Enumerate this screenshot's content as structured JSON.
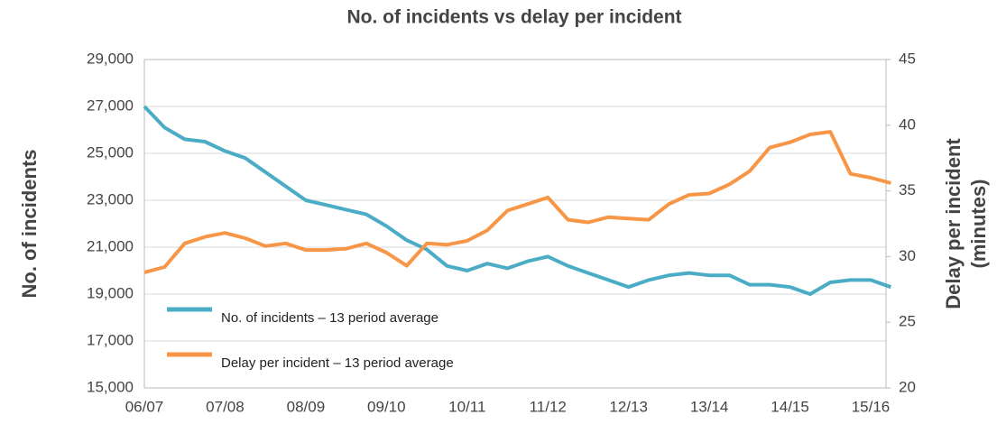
{
  "chart_data": {
    "type": "line",
    "title": "No. of incidents vs delay per incident",
    "y_label": "No. of incidents",
    "y2_label": [
      "Delay per incident",
      "(minutes)"
    ],
    "categories": [
      "06/07",
      null,
      null,
      null,
      "07/08",
      null,
      null,
      null,
      "08/09",
      null,
      null,
      null,
      "09/10",
      null,
      null,
      null,
      "10/11",
      null,
      null,
      null,
      "11/12",
      null,
      null,
      null,
      "12/13",
      null,
      null,
      null,
      "13/14",
      null,
      null,
      null,
      "14/15",
      null,
      null,
      null,
      "15/16",
      null
    ],
    "series": [
      {
        "name": "No. of incidents – 13 period average",
        "color": "#4bacc6",
        "values": [
          27000,
          26100,
          25600,
          25500,
          25100,
          24800,
          24200,
          23600,
          23000,
          22800,
          22600,
          22400,
          21900,
          21300,
          20900,
          20200,
          20000,
          20300,
          20100,
          20400,
          20600,
          20200,
          19900,
          19600,
          19300,
          19600,
          19800,
          19900,
          19800,
          19800,
          19400,
          19400,
          19300,
          19000,
          19500,
          19600,
          19600,
          19300
        ]
      },
      {
        "name": "Delay per incident – 13 period average",
        "color": "#f79646",
        "axis": "y2",
        "values": [
          28.8,
          29.2,
          31,
          31.5,
          31.8,
          31.4,
          30.8,
          31,
          30.5,
          30.5,
          30.6,
          31,
          30.3,
          29.3,
          31,
          30.9,
          31.2,
          32,
          33.5,
          34,
          34.5,
          32.8,
          32.6,
          33,
          32.9,
          32.8,
          34,
          34.7,
          34.8,
          35.5,
          36.5,
          38.3,
          38.7,
          39.3,
          39.5,
          36.3,
          36,
          35.6
        ]
      }
    ],
    "ylim": [
      15000,
      29000
    ],
    "yticks": [
      {
        "value": 15000,
        "label": "15,000"
      },
      {
        "value": 17000,
        "label": "17,000"
      },
      {
        "value": 19000,
        "label": "19,000"
      },
      {
        "value": 21000,
        "label": "21,000"
      },
      {
        "value": 23000,
        "label": "23,000"
      },
      {
        "value": 25000,
        "label": "25,000"
      },
      {
        "value": 27000,
        "label": "27,000"
      },
      {
        "value": 29000,
        "label": "29,000"
      }
    ],
    "y2lim": [
      20,
      45
    ],
    "y2ticks": [
      20,
      25,
      30,
      35,
      40,
      45
    ],
    "grid": true,
    "legend": "lower left"
  }
}
